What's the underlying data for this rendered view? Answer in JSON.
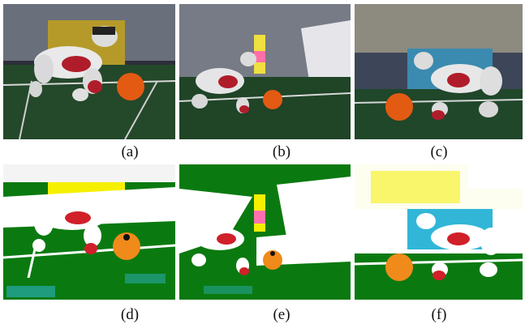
{
  "panels": [
    {
      "id": "a",
      "caption": "(a)",
      "kind": "photo"
    },
    {
      "id": "b",
      "caption": "(b)",
      "kind": "photo"
    },
    {
      "id": "c",
      "caption": "(c)",
      "kind": "photo"
    },
    {
      "id": "d",
      "caption": "(d)",
      "kind": "segmentation"
    },
    {
      "id": "e",
      "caption": "(e)",
      "kind": "segmentation"
    },
    {
      "id": "f",
      "caption": "(f)",
      "kind": "segmentation"
    }
  ],
  "colors": {
    "field_green": "#1f4f22",
    "seg_green": "#0a7a10",
    "seg_white": "#ffffff",
    "seg_orange": "#f08a1a",
    "seg_yellow": "#f5f000",
    "seg_pink": "#ff6fb0",
    "seg_cyan": "#31b6d8",
    "robot_red": "#c0202a"
  }
}
